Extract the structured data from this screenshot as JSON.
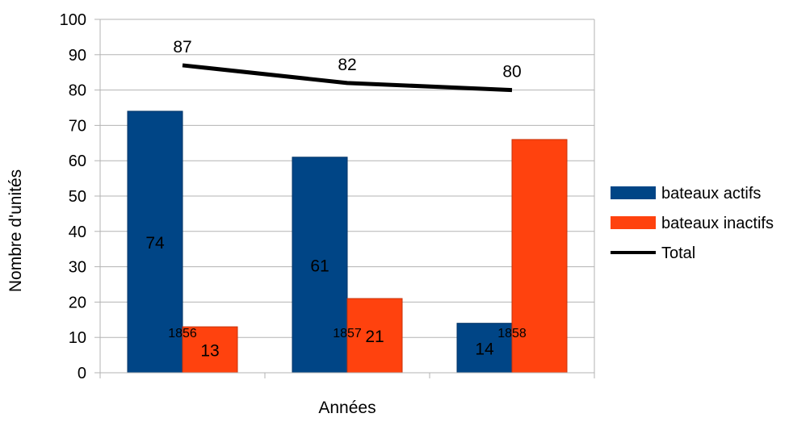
{
  "chart_data": {
    "type": "bar",
    "title": "",
    "xlabel": "Années",
    "ylabel": "Nombre d'unités",
    "ylim": [
      0,
      100
    ],
    "yticks": [
      "0",
      "10",
      "20",
      "30",
      "40",
      "50",
      "60",
      "70",
      "80",
      "90",
      "100"
    ],
    "categories": [
      "1856",
      "1857",
      "1858"
    ],
    "series": [
      {
        "name": "bateaux actifs",
        "kind": "bar",
        "color": "#004586",
        "values": [
          74,
          61,
          14
        ],
        "labels": [
          "74",
          "61",
          "14"
        ]
      },
      {
        "name": "bateaux inactifs",
        "kind": "bar",
        "color": "#ff420e",
        "values": [
          13,
          21,
          66
        ],
        "labels": [
          "13",
          "21",
          ""
        ]
      },
      {
        "name": "Total",
        "kind": "line",
        "color": "#000000",
        "values": [
          87,
          82,
          80
        ],
        "labels": [
          "87",
          "82",
          "80"
        ]
      }
    ],
    "grid": true,
    "legend_position": "right"
  }
}
